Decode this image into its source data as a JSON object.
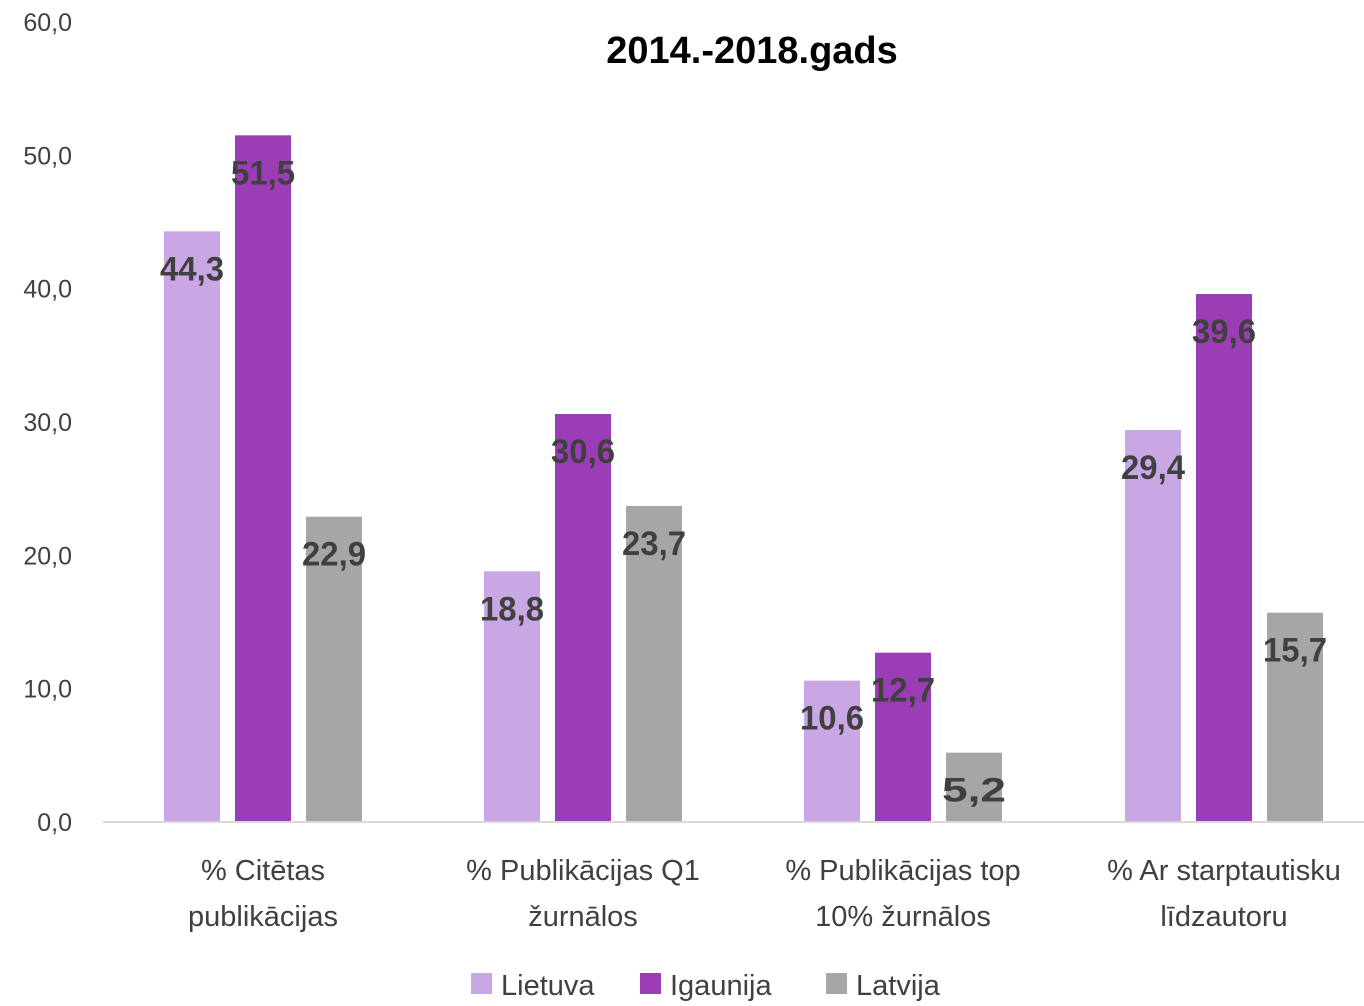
{
  "chart_data": {
    "type": "bar",
    "title": "2014.-2018.gads",
    "categories": [
      [
        "% Citētas",
        "publikācijas"
      ],
      [
        "% Publikācijas Q1",
        "žurnālos"
      ],
      [
        "% Publikācijas top",
        "10% žurnālos"
      ],
      [
        "% Ar starptautisku",
        "līdzautoru"
      ]
    ],
    "series": [
      {
        "name": "Lietuva",
        "color": "#c9a6e4",
        "values": [
          44.3,
          18.8,
          10.6,
          29.4
        ],
        "labels": [
          "44,3",
          "18,8",
          "10,6",
          "29,4"
        ]
      },
      {
        "name": "Igaunija",
        "color": "#9b3db5",
        "values": [
          51.5,
          30.6,
          12.7,
          39.6
        ],
        "labels": [
          "51,5",
          "30,6",
          "12,7",
          "39,6"
        ]
      },
      {
        "name": "Latvija",
        "color": "#a6a6a6",
        "values": [
          22.9,
          23.7,
          5.2,
          15.7
        ],
        "labels": [
          "22,9",
          "23,7",
          "5,2",
          "15,7"
        ]
      }
    ],
    "ylim": [
      0,
      60
    ],
    "yticks": [
      0,
      10,
      20,
      30,
      40,
      50,
      60
    ],
    "ytick_labels": [
      "0,0",
      "10,0",
      "20,0",
      "30,0",
      "40,0",
      "50,0",
      "60,0"
    ],
    "xlabel": "",
    "ylabel": "",
    "grid": false,
    "legend_position": "bottom"
  }
}
